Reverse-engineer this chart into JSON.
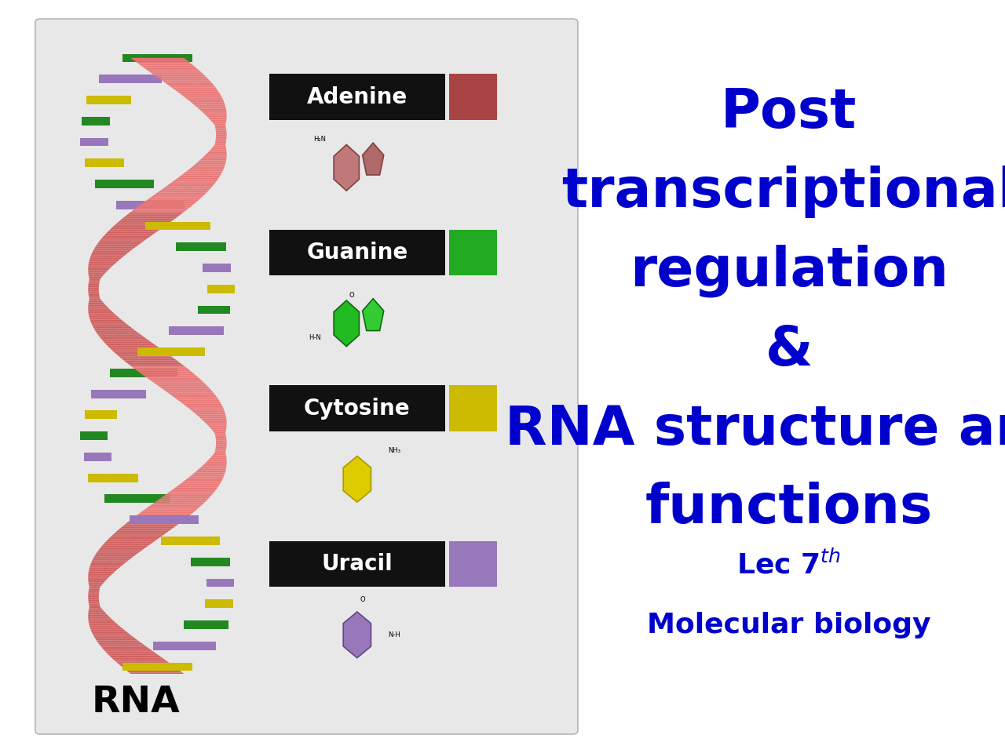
{
  "bg_color": "#a8b8d0",
  "panel_color": "#e8e8e8",
  "title_lines": [
    "Post",
    "transcriptional",
    "regulation",
    "&",
    "RNA structure and",
    "functions"
  ],
  "title_color": "#0000cc",
  "title_fontsize": 50,
  "subtitle_line1": "Lec 7",
  "subtitle_sup": "th",
  "subtitle_line2": "Molecular biology",
  "subtitle_fontsize": 26,
  "subtitle_color": "#0000cc",
  "nucleotides": [
    {
      "name": "Adenine",
      "color": "#aa4444"
    },
    {
      "name": "Guanine",
      "color": "#22aa22"
    },
    {
      "name": "Cytosine",
      "color": "#ccbb00"
    },
    {
      "name": "Uracil",
      "color": "#9977bb"
    }
  ],
  "label_bg": "#111111",
  "label_fg": "#ffffff",
  "label_fontsize": 20,
  "rna_text": "RNA",
  "rna_fontsize": 34,
  "helix_color": "#e07878",
  "helix_color2": "#f0a0a0",
  "pair_colors": [
    "#228822",
    "#9977bb",
    "#ccbb00",
    "#228822",
    "#9977bb",
    "#ccbb00",
    "#228822",
    "#9977bb",
    "#ccbb00",
    "#228822",
    "#9977bb",
    "#ccbb00"
  ],
  "figsize": [
    12.8,
    9.6
  ],
  "dpi": 100
}
